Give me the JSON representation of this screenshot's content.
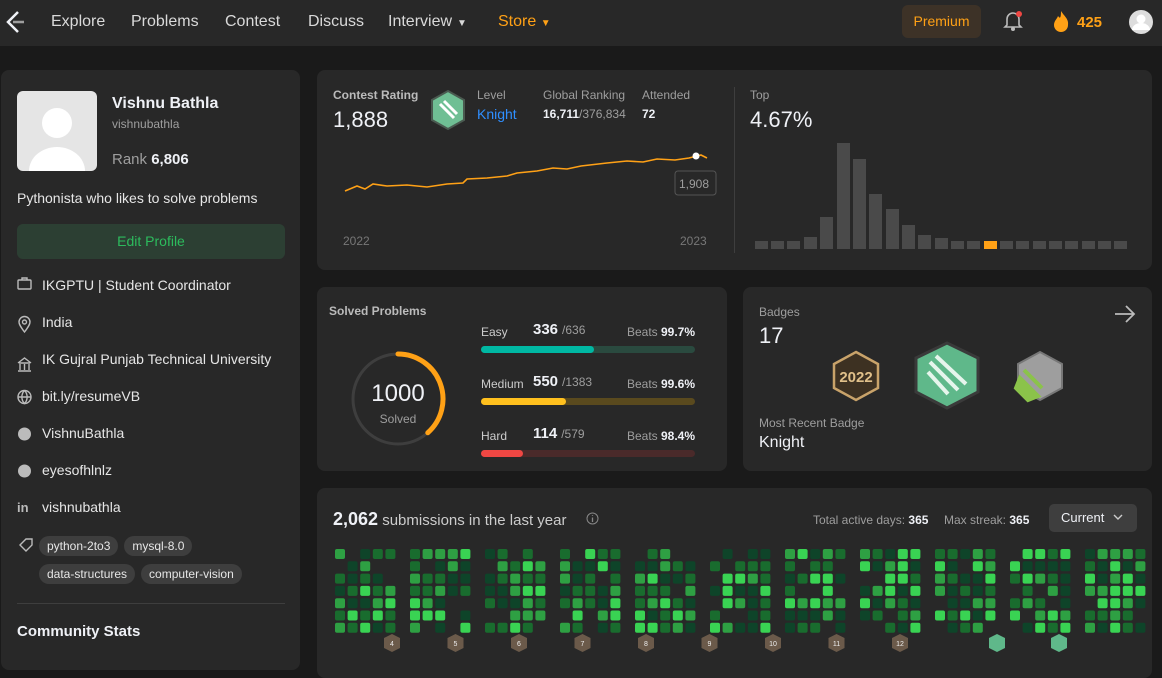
{
  "nav": {
    "items": [
      "Explore",
      "Problems",
      "Contest",
      "Discuss",
      "Interview"
    ],
    "store": "Store",
    "premium": "Premium",
    "streak": 425
  },
  "profile": {
    "name": "Vishnu Bathla",
    "username": "vishnubathla",
    "rank_label": "Rank",
    "rank": "6,806",
    "bio": "Pythonista who likes to solve problems",
    "edit": "Edit Profile",
    "details": [
      "IKGPTU | Student Coordinator",
      "India",
      "IK Gujral Punjab Technical University",
      "bit.ly/resumeVB",
      "VishnuBathla",
      "eyesofhlnlz",
      "vishnubathla"
    ],
    "skills": [
      "python-2to3",
      "mysql-8.0",
      "data-structures",
      "computer-vision"
    ],
    "community": "Community Stats"
  },
  "contest": {
    "rating_label": "Contest Rating",
    "rating": "1,888",
    "level_label": "Level",
    "level": "Knight",
    "ranking_label": "Global Ranking",
    "ranking": "16,711",
    "ranking_total": "/376,834",
    "attended_label": "Attended",
    "attended": 72,
    "years": [
      "2022",
      "2023"
    ],
    "tooltip": "1,908",
    "top_label": "Top",
    "top": "4.67%"
  },
  "solved": {
    "title": "Solved Problems",
    "total": 1000,
    "total_label": "Solved",
    "beats_label": "Beats",
    "levels": [
      {
        "name": "Easy",
        "solved": 336,
        "total": {
          "value": 636,
          "label": "/636"
        },
        "beats": "99.7%",
        "color": "#00b8a3",
        "track": "#2a4a3f"
      },
      {
        "name": "Medium",
        "solved": 550,
        "total": {
          "value": 1383,
          "label": "/1383"
        },
        "beats": "99.6%",
        "color": "#ffc01e",
        "track": "#5a4a1e"
      },
      {
        "name": "Hard",
        "solved": 114,
        "total": {
          "value": 579,
          "label": "/579"
        },
        "beats": "98.4%",
        "color": "#ef4743",
        "track": "#4a2a2a"
      }
    ]
  },
  "badges": {
    "title": "Badges",
    "count": 17,
    "recent_label": "Most Recent Badge",
    "recent": "Knight"
  },
  "submissions": {
    "count": "2,062",
    "text": "submissions in the last year",
    "active_label": "Total active days:",
    "active": 365,
    "streak_label": "Max streak:",
    "streak": 365,
    "select": "Current",
    "months": [
      4,
      5,
      6,
      7,
      8,
      9,
      10,
      11,
      12
    ]
  }
}
